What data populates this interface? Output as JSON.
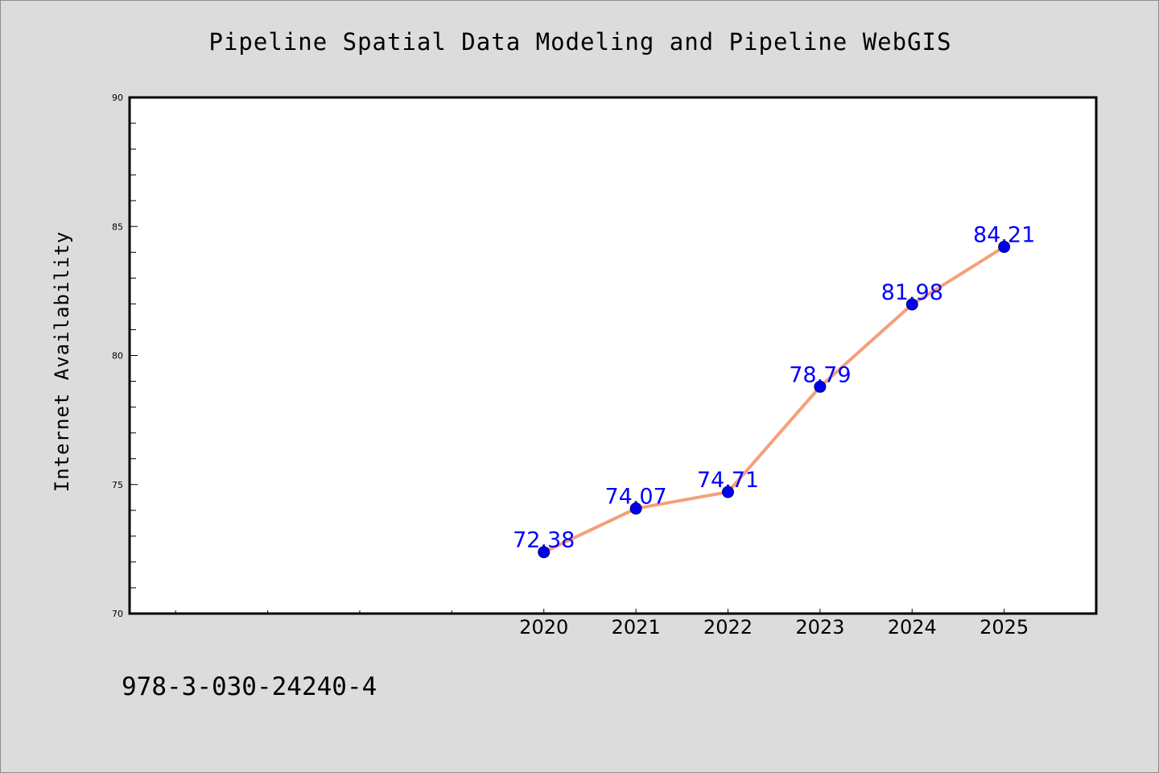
{
  "chart_data": {
    "type": "line",
    "title": "Pipeline Spatial Data Modeling and Pipeline WebGIS",
    "ylabel": "Internet Availability",
    "xlabel": "",
    "x": [
      2020,
      2021,
      2022,
      2023,
      2024,
      2025
    ],
    "series": [
      {
        "values": [
          72.38,
          74.07,
          74.71,
          78.79,
          81.98,
          84.21
        ],
        "labels": [
          "72.38",
          "74.07",
          "74.71",
          "78.79",
          "81.98",
          "84.21"
        ]
      }
    ],
    "xlim": [
      2015.5,
      2026
    ],
    "ylim": [
      70,
      90
    ],
    "yticks": [
      "70",
      "75",
      "80",
      "85",
      "90"
    ],
    "xticks": [
      "2020",
      "2021",
      "2022",
      "2023",
      "2024",
      "2025"
    ],
    "grid": false,
    "colors": {
      "line": "#f4a07a",
      "marker": "#0000ee",
      "marker_edge": "#00007a",
      "label": "#0000ff",
      "background": "#dcdcdc",
      "plot_background": "#ffffff"
    }
  },
  "footer": {
    "isbn": "978-3-030-24240-4"
  }
}
